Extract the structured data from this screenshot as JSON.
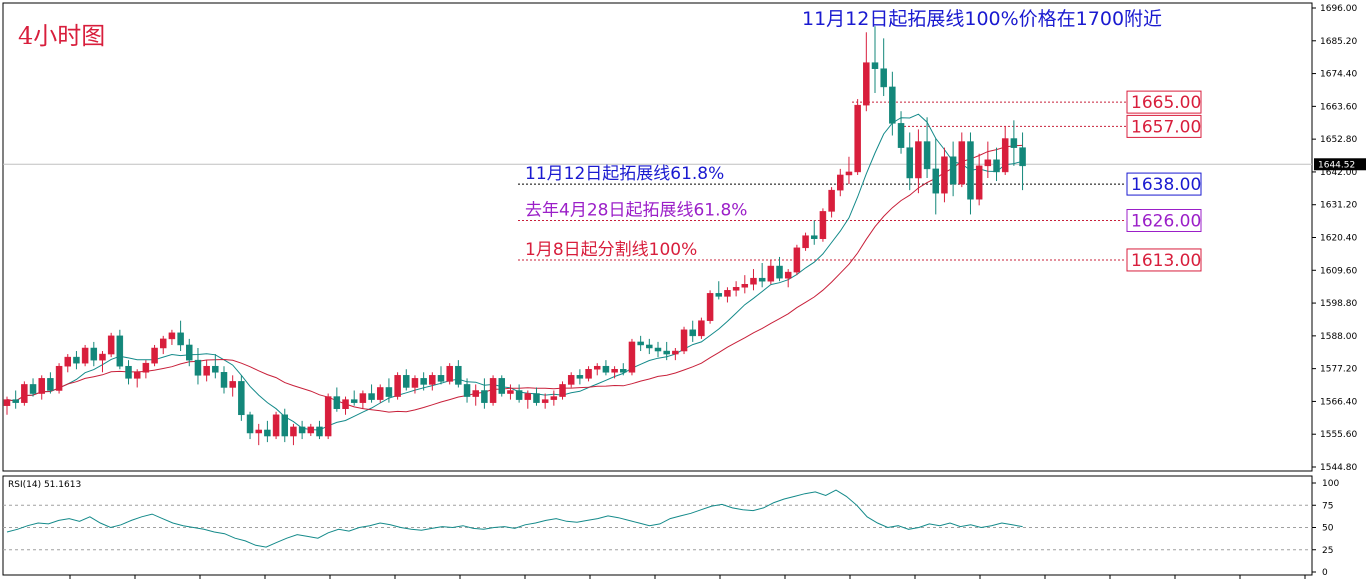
{
  "colors": {
    "bull": "#d81e3c",
    "bear": "#13877a",
    "ma_fast": "#148a8a",
    "ma_slow": "#c8203a",
    "rsi": "#148a8a",
    "grid": "#c8c8c8",
    "red_text": "#d81e3c",
    "blue_text": "#1a1ad0",
    "purple_text": "#9b1fc8"
  },
  "chart_title": "4小时图",
  "top_annotation": "11月12日起拓展线100%价格在1700附近",
  "annotations": [
    {
      "text": "11月12日起拓展线61.8%",
      "price": 1638.0,
      "label": "1638.00",
      "color": "#1a1ad0",
      "line": "#000000"
    },
    {
      "text": "去年4月28日起拓展线61.8%",
      "price": 1626.0,
      "label": "1626.00",
      "color": "#9b1fc8",
      "line": "#c8203a"
    },
    {
      "text": "1月8日起分割线100%",
      "price": 1613.0,
      "label": "1613.00",
      "color": "#d81e3c",
      "line": "#c8203a"
    }
  ],
  "resistances": [
    {
      "price": 1665.0,
      "label": "1665.00"
    },
    {
      "price": 1657.0,
      "label": "1657.00"
    }
  ],
  "current_price": {
    "price": 1644.52,
    "label": "1644.52"
  },
  "chart_data": {
    "type": "candlestick",
    "yticks": [
      "1696.00",
      "1685.20",
      "1674.40",
      "1663.60",
      "1652.80",
      "1642.00",
      "1631.20",
      "1620.40",
      "1609.60",
      "1598.80",
      "1588.00",
      "1577.20",
      "1566.40",
      "1555.60",
      "1544.80"
    ],
    "ylim": [
      1544.8,
      1696.0
    ],
    "candles": [
      [
        1565,
        1568,
        1562,
        1567
      ],
      [
        1567,
        1570,
        1564,
        1566
      ],
      [
        1566,
        1573,
        1565,
        1572
      ],
      [
        1572,
        1574,
        1568,
        1569
      ],
      [
        1569,
        1575,
        1567,
        1574
      ],
      [
        1574,
        1576,
        1569,
        1570
      ],
      [
        1570,
        1579,
        1569,
        1578
      ],
      [
        1578,
        1582,
        1576,
        1581
      ],
      [
        1581,
        1583,
        1577,
        1579
      ],
      [
        1579,
        1585,
        1578,
        1584
      ],
      [
        1584,
        1586,
        1578,
        1580
      ],
      [
        1580,
        1583,
        1576,
        1582
      ],
      [
        1582,
        1589,
        1581,
        1588
      ],
      [
        1588,
        1590,
        1577,
        1578
      ],
      [
        1578,
        1580,
        1572,
        1574
      ],
      [
        1574,
        1577,
        1571,
        1576
      ],
      [
        1576,
        1580,
        1574,
        1579
      ],
      [
        1579,
        1585,
        1578,
        1584
      ],
      [
        1584,
        1588,
        1582,
        1587
      ],
      [
        1587,
        1590,
        1585,
        1589
      ],
      [
        1589,
        1593,
        1583,
        1585
      ],
      [
        1585,
        1587,
        1578,
        1580
      ],
      [
        1580,
        1584,
        1572,
        1575
      ],
      [
        1575,
        1580,
        1573,
        1578
      ],
      [
        1578,
        1582,
        1574,
        1576
      ],
      [
        1576,
        1578,
        1569,
        1571
      ],
      [
        1571,
        1575,
        1568,
        1573
      ],
      [
        1573,
        1575,
        1560,
        1562
      ],
      [
        1562,
        1563,
        1554,
        1556
      ],
      [
        1556,
        1559,
        1552,
        1557
      ],
      [
        1557,
        1560,
        1553,
        1555
      ],
      [
        1555,
        1563,
        1554,
        1562
      ],
      [
        1562,
        1564,
        1553,
        1555
      ],
      [
        1555,
        1559,
        1552,
        1558
      ],
      [
        1558,
        1560,
        1554,
        1556
      ],
      [
        1556,
        1559,
        1555,
        1558
      ],
      [
        1558,
        1560,
        1554,
        1555
      ],
      [
        1555,
        1569,
        1554,
        1568
      ],
      [
        1568,
        1571,
        1563,
        1564
      ],
      [
        1564,
        1568,
        1562,
        1567
      ],
      [
        1567,
        1570,
        1565,
        1566
      ],
      [
        1566,
        1570,
        1564,
        1569
      ],
      [
        1569,
        1572,
        1566,
        1567
      ],
      [
        1567,
        1572,
        1566,
        1571
      ],
      [
        1571,
        1574,
        1566,
        1568
      ],
      [
        1568,
        1576,
        1567,
        1575
      ],
      [
        1575,
        1577,
        1570,
        1571
      ],
      [
        1571,
        1575,
        1569,
        1574
      ],
      [
        1574,
        1576,
        1570,
        1572
      ],
      [
        1572,
        1576,
        1570,
        1575
      ],
      [
        1575,
        1578,
        1572,
        1573
      ],
      [
        1573,
        1579,
        1572,
        1578
      ],
      [
        1578,
        1580,
        1571,
        1572
      ],
      [
        1572,
        1574,
        1566,
        1568
      ],
      [
        1568,
        1572,
        1565,
        1570
      ],
      [
        1570,
        1574,
        1564,
        1566
      ],
      [
        1566,
        1575,
        1565,
        1574
      ],
      [
        1574,
        1575,
        1568,
        1569
      ],
      [
        1569,
        1572,
        1567,
        1570
      ],
      [
        1570,
        1572,
        1566,
        1567
      ],
      [
        1567,
        1570,
        1564,
        1569
      ],
      [
        1569,
        1571,
        1565,
        1566
      ],
      [
        1566,
        1569,
        1564,
        1567
      ],
      [
        1567,
        1570,
        1565,
        1568
      ],
      [
        1568,
        1573,
        1567,
        1572
      ],
      [
        1572,
        1576,
        1571,
        1575
      ],
      [
        1575,
        1577,
        1572,
        1574
      ],
      [
        1574,
        1578,
        1573,
        1577
      ],
      [
        1577,
        1579,
        1575,
        1578
      ],
      [
        1578,
        1580,
        1575,
        1576
      ],
      [
        1576,
        1578,
        1574,
        1577
      ],
      [
        1577,
        1579,
        1575,
        1576
      ],
      [
        1576,
        1587,
        1575,
        1586
      ],
      [
        1586,
        1588,
        1583,
        1585
      ],
      [
        1585,
        1587,
        1582,
        1584
      ],
      [
        1584,
        1586,
        1581,
        1583
      ],
      [
        1583,
        1586,
        1580,
        1582
      ],
      [
        1582,
        1584,
        1580,
        1583
      ],
      [
        1583,
        1591,
        1582,
        1590
      ],
      [
        1590,
        1593,
        1586,
        1588
      ],
      [
        1588,
        1594,
        1587,
        1593
      ],
      [
        1593,
        1603,
        1592,
        1602
      ],
      [
        1602,
        1606,
        1600,
        1601
      ],
      [
        1601,
        1604,
        1599,
        1603
      ],
      [
        1603,
        1606,
        1601,
        1604
      ],
      [
        1604,
        1608,
        1602,
        1605
      ],
      [
        1605,
        1610,
        1603,
        1607
      ],
      [
        1607,
        1612,
        1604,
        1606
      ],
      [
        1606,
        1613,
        1605,
        1611
      ],
      [
        1611,
        1614,
        1606,
        1607
      ],
      [
        1607,
        1610,
        1604,
        1609
      ],
      [
        1609,
        1618,
        1608,
        1617
      ],
      [
        1617,
        1622,
        1616,
        1621
      ],
      [
        1621,
        1626,
        1618,
        1620
      ],
      [
        1620,
        1630,
        1619,
        1629
      ],
      [
        1629,
        1637,
        1627,
        1636
      ],
      [
        1636,
        1643,
        1634,
        1641
      ],
      [
        1641,
        1647,
        1638,
        1642
      ],
      [
        1642,
        1666,
        1641,
        1664
      ],
      [
        1664,
        1688,
        1662,
        1678
      ],
      [
        1678,
        1690,
        1668,
        1676
      ],
      [
        1676,
        1686,
        1667,
        1670
      ],
      [
        1670,
        1675,
        1654,
        1658
      ],
      [
        1658,
        1662,
        1648,
        1650
      ],
      [
        1650,
        1655,
        1636,
        1640
      ],
      [
        1640,
        1656,
        1635,
        1652
      ],
      [
        1652,
        1660,
        1640,
        1643
      ],
      [
        1643,
        1653,
        1628,
        1635
      ],
      [
        1635,
        1650,
        1632,
        1647
      ],
      [
        1647,
        1652,
        1634,
        1638
      ],
      [
        1638,
        1655,
        1637,
        1652
      ],
      [
        1652,
        1655,
        1628,
        1633
      ],
      [
        1633,
        1648,
        1631,
        1644
      ],
      [
        1644,
        1652,
        1640,
        1646
      ],
      [
        1646,
        1650,
        1639,
        1642
      ],
      [
        1642,
        1657,
        1641,
        1653
      ],
      [
        1653,
        1659,
        1644,
        1650
      ],
      [
        1650,
        1655,
        1636,
        1644
      ]
    ]
  },
  "rsi": {
    "label": "RSI(14) 51.1613",
    "levels": [
      "100",
      "75",
      "50",
      "25",
      "0"
    ],
    "values": [
      45,
      48,
      52,
      55,
      54,
      58,
      60,
      57,
      62,
      55,
      50,
      53,
      58,
      62,
      65,
      60,
      55,
      52,
      50,
      48,
      45,
      43,
      38,
      35,
      30,
      28,
      33,
      38,
      42,
      40,
      38,
      44,
      48,
      46,
      50,
      52,
      55,
      53,
      50,
      48,
      47,
      49,
      51,
      50,
      52,
      49,
      48,
      50,
      51,
      49,
      53,
      55,
      58,
      60,
      57,
      56,
      58,
      60,
      63,
      61,
      58,
      55,
      52,
      54,
      60,
      63,
      66,
      70,
      74,
      76,
      72,
      70,
      69,
      72,
      78,
      82,
      85,
      88,
      90,
      86,
      92,
      85,
      75,
      62,
      55,
      50,
      52,
      48,
      50,
      54,
      52,
      55,
      51,
      53,
      50,
      52,
      55,
      53,
      51
    ],
    "ylim": [
      0,
      100
    ]
  }
}
